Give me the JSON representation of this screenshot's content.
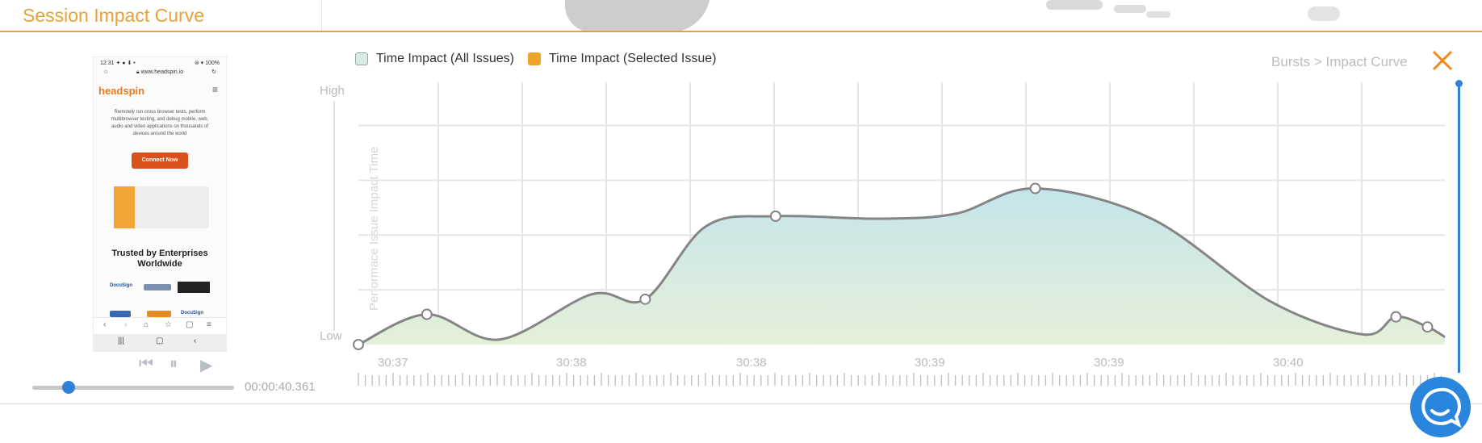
{
  "header": {
    "title": "Session Impact Curve"
  },
  "player": {
    "timecode": "00:00:40.361",
    "progress_fraction": 0.18,
    "phone": {
      "status_left": "12:31 ✦ ● ⬇ •",
      "status_right": "⊜ ▾ 100%",
      "url": "www.headspin.io",
      "logo": "headspin",
      "description": "Remotely run cross browser tests, perform multibrowser testing, and debug mobile, web, audio and video applications on thousands of devices around the world",
      "cta_label": "Connect Now",
      "trusted_heading": "Trusted by Enterprises Worldwide",
      "logos": [
        "DocuSign",
        "",
        "",
        "",
        "",
        "DocuSign"
      ]
    }
  },
  "legend": [
    {
      "label": "Time Impact (All Issues)",
      "color": "#d8ece4"
    },
    {
      "label": "Time Impact (Selected Issue)",
      "color": "#f0a32b"
    }
  ],
  "breadcrumb": "Bursts > Impact Curve",
  "chart_data": {
    "type": "area",
    "ylabel": "Performace Issue Impact Time",
    "y_tick_labels": {
      "top": "High",
      "bottom": "Low"
    },
    "x_tick_labels": [
      "30:37",
      "30:38",
      "30:38",
      "30:39",
      "30:39",
      "30:40"
    ],
    "ylim": [
      0,
      1
    ],
    "grid": true,
    "series": [
      {
        "points": [
          [
            0.0,
            0.0
          ],
          [
            0.063,
            0.12
          ],
          [
            0.13,
            0.02
          ],
          [
            0.215,
            0.2
          ],
          [
            0.264,
            0.18
          ],
          [
            0.32,
            0.47
          ],
          [
            0.384,
            0.51
          ],
          [
            0.48,
            0.5
          ],
          [
            0.55,
            0.52
          ],
          [
            0.623,
            0.62
          ],
          [
            0.73,
            0.5
          ],
          [
            0.84,
            0.17
          ],
          [
            0.925,
            0.04
          ],
          [
            0.955,
            0.11
          ],
          [
            0.984,
            0.07
          ],
          [
            1.0,
            0.03
          ]
        ],
        "markers": [
          0.0,
          0.063,
          0.264,
          0.384,
          0.623,
          0.955,
          0.984
        ]
      }
    ]
  },
  "colors": {
    "accent": "#e8a236",
    "blue": "#2a86dc",
    "curve": "#858585"
  }
}
